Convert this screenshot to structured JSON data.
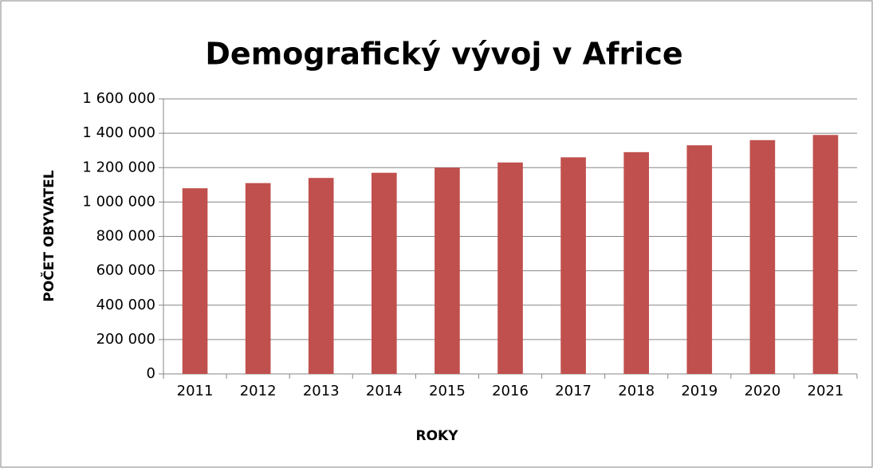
{
  "chart_data": {
    "type": "bar",
    "title": "Demografický vývoj v Africe",
    "x_label": "ROKY",
    "y_label": "POČET OBYVATEL",
    "categories": [
      "2011",
      "2012",
      "2013",
      "2014",
      "2015",
      "2016",
      "2017",
      "2018",
      "2019",
      "2020",
      "2021"
    ],
    "values": [
      1080000,
      1110000,
      1140000,
      1170000,
      1200000,
      1230000,
      1260000,
      1290000,
      1330000,
      1360000,
      1390000
    ],
    "color": "#c0504d",
    "ylim": [
      0,
      1600000
    ],
    "yticks": [
      0,
      {
        "value": 200000,
        "label": "200 000"
      },
      {
        "value": 400000,
        "label": "400 000"
      },
      {
        "value": 600000,
        "label": "600 000"
      },
      {
        "value": 800000,
        "label": "800 000"
      },
      {
        "value": 1000000,
        "label": "1 000 000"
      },
      {
        "value": 1200000,
        "label": "1 200 000"
      },
      {
        "value": 1400000,
        "label": "1 400 000"
      },
      {
        "value": 1600000,
        "label": "1 600 000"
      }
    ],
    "grid": true
  }
}
